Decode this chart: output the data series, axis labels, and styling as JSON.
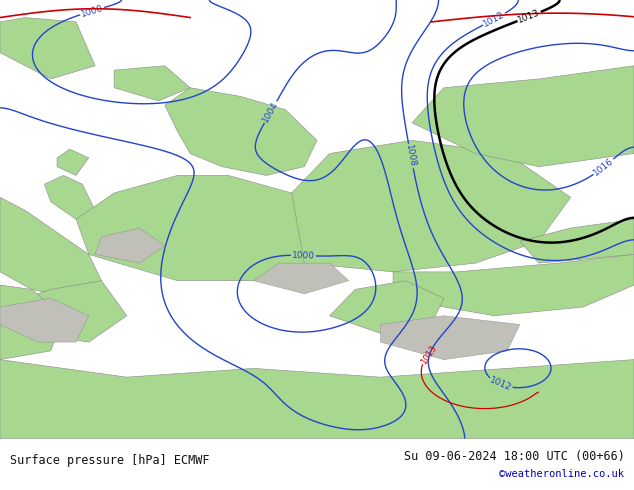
{
  "title_left": "Surface pressure [hPa] ECMWF",
  "title_right": "Su 09-06-2024 18:00 UTC (00+66)",
  "credit": "©weatheronline.co.uk",
  "bg_color": "#c8c8c8",
  "land_color": "#a8d890",
  "gray_land_color": "#c0c0b8",
  "fig_width": 6.34,
  "fig_height": 4.9,
  "dpi": 100,
  "text_color_main": "#111111",
  "text_color_credit": "#0000bb",
  "bottom_bar_color": "#ffffff",
  "isobar_blue": "#2244cc",
  "isobar_black": "#000000",
  "isobar_red": "#cc0000",
  "label_fontsize": 6.5,
  "title_fontsize": 8.5,
  "credit_fontsize": 7.5
}
